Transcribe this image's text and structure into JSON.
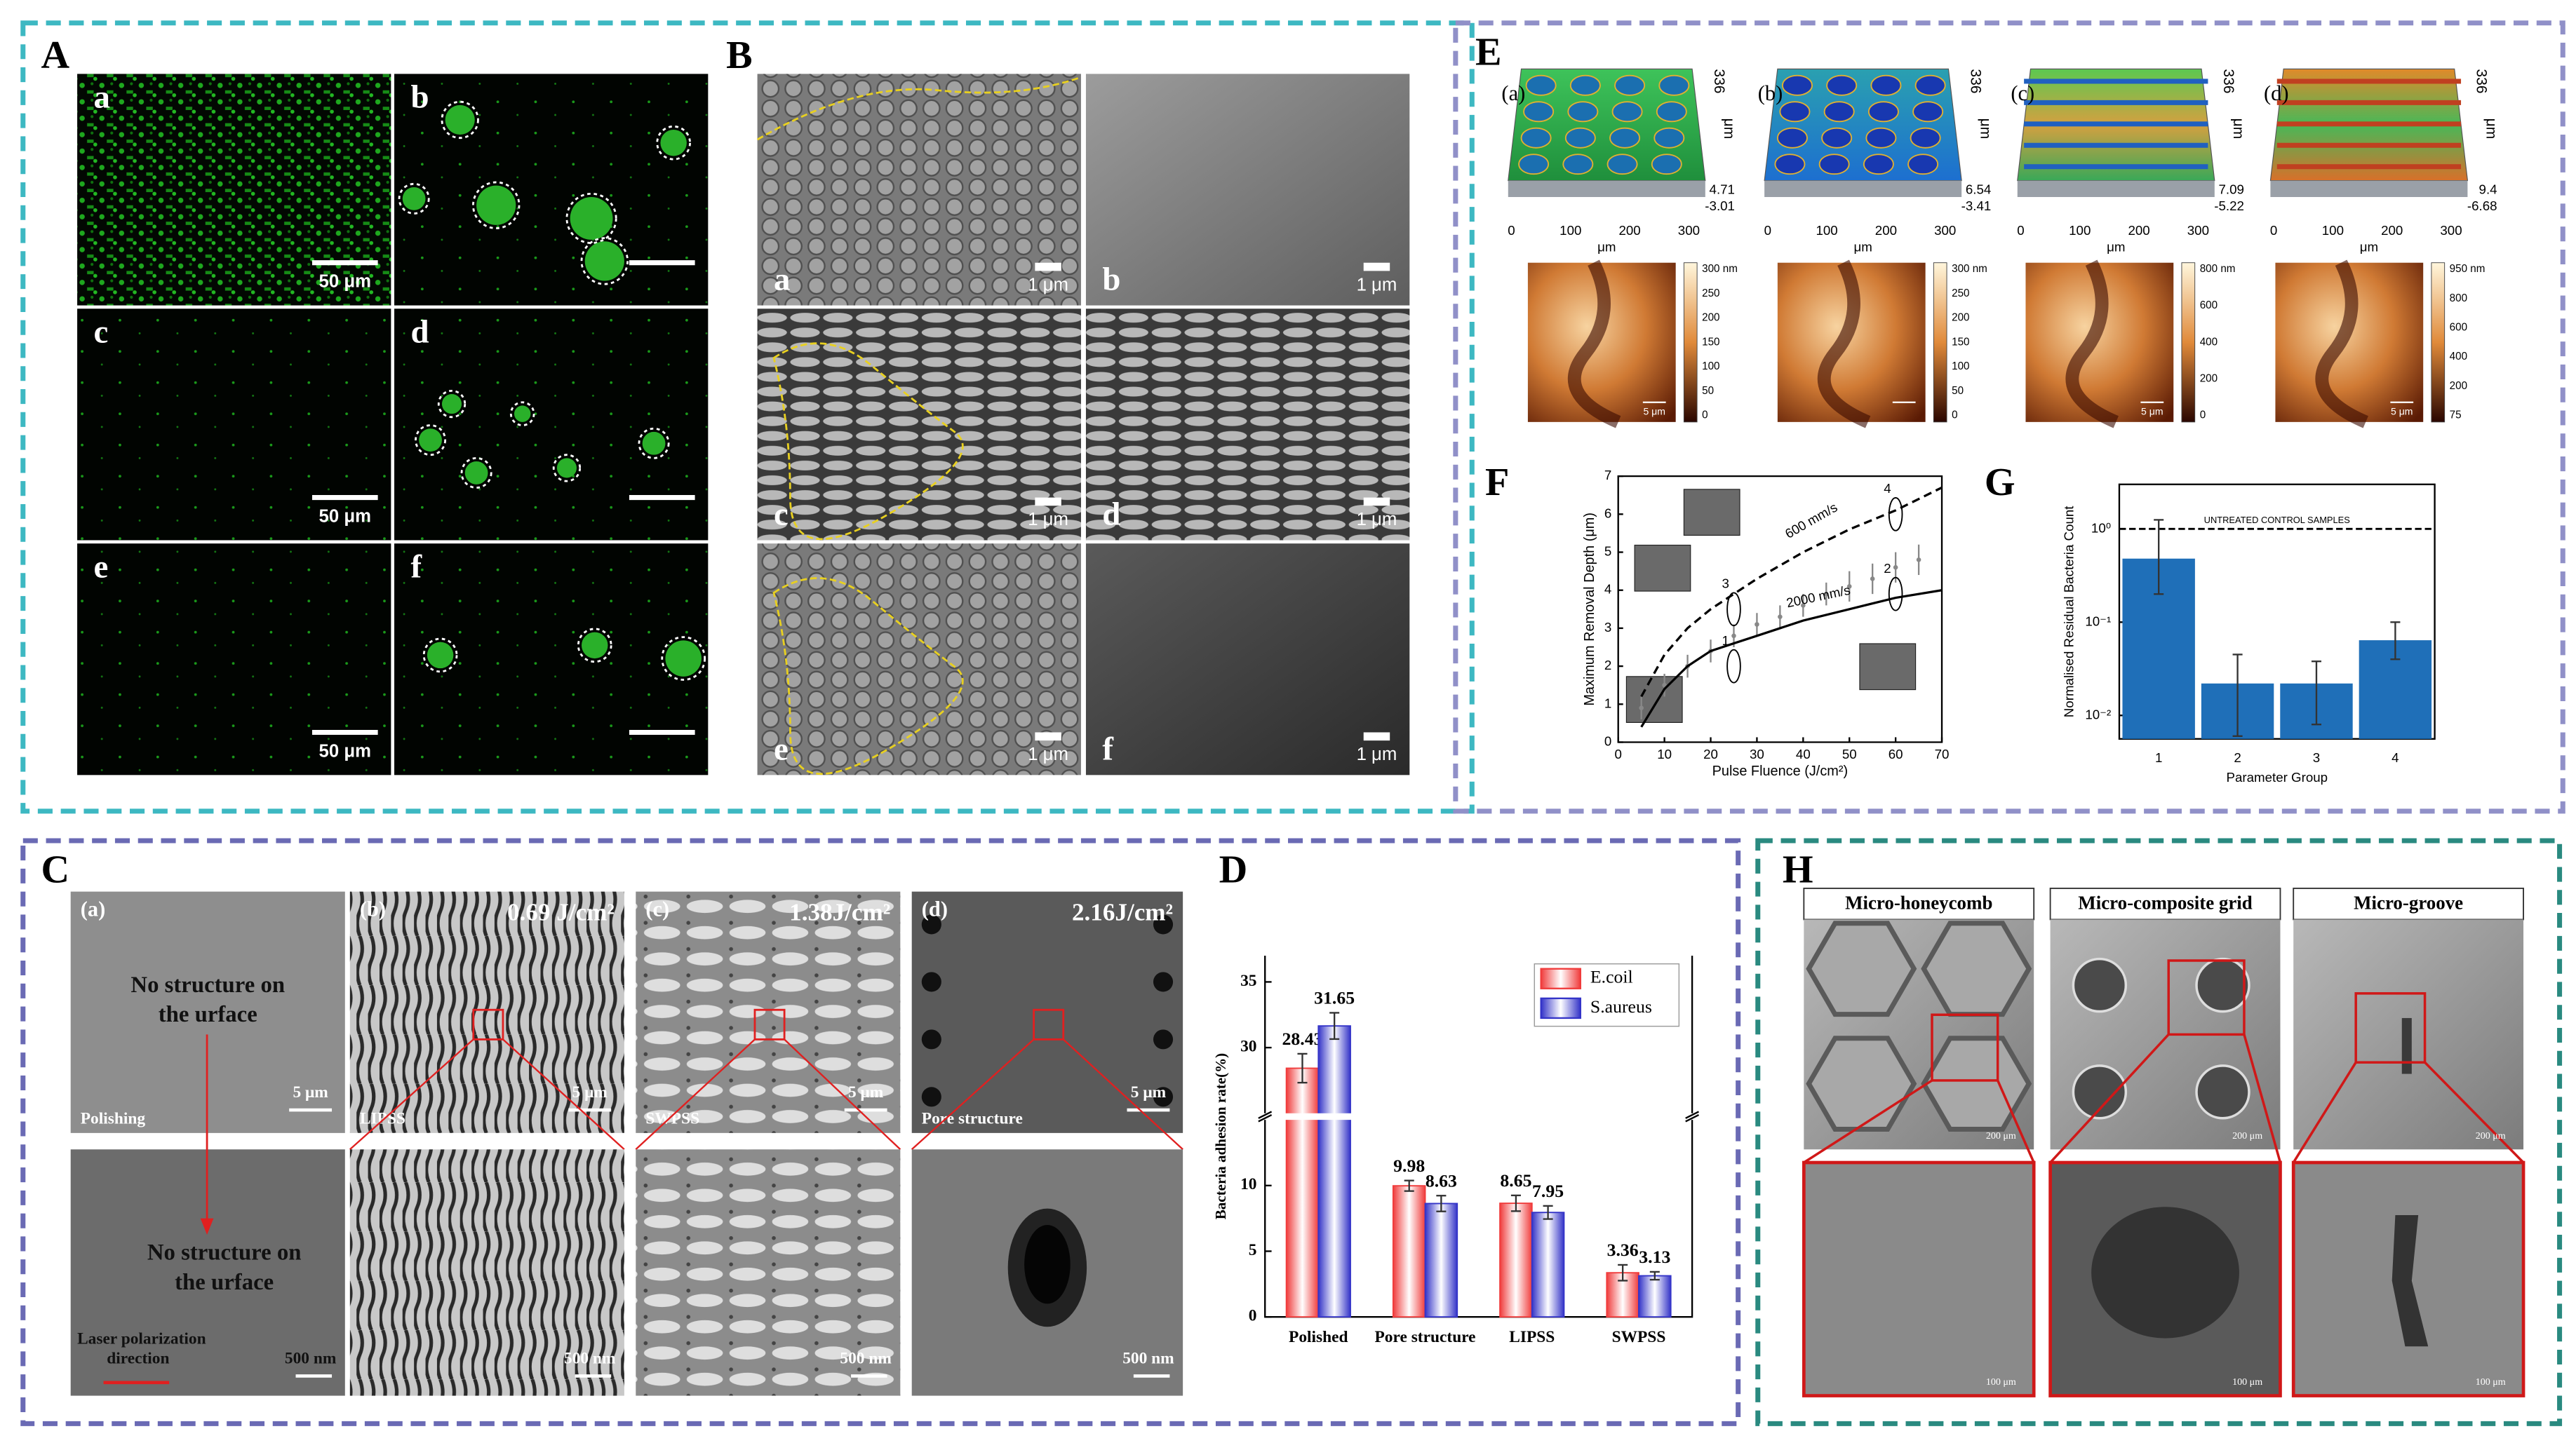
{
  "panels": {
    "A": {
      "label": "A",
      "images": [
        {
          "label": "a",
          "scale_bar": "50 μm"
        },
        {
          "label": "b"
        },
        {
          "label": "c",
          "scale_bar": "50 μm"
        },
        {
          "label": "d"
        },
        {
          "label": "e",
          "scale_bar": "50 μm"
        },
        {
          "label": "f"
        }
      ]
    },
    "B": {
      "label": "B",
      "images": [
        {
          "label": "a",
          "scale_bar": "1 μm"
        },
        {
          "label": "b",
          "scale_bar": "1 μm"
        },
        {
          "label": "c",
          "scale_bar": "1 μm"
        },
        {
          "label": "d",
          "scale_bar": "1 μm"
        },
        {
          "label": "e",
          "scale_bar": "1 μm"
        },
        {
          "label": "f",
          "scale_bar": "1 μm"
        }
      ]
    },
    "C": {
      "label": "C",
      "top": [
        {
          "label": "(a)",
          "note": [
            "No structure on",
            "the urface"
          ],
          "caption": "Polishing",
          "scale_bar": "5 μm"
        },
        {
          "label": "(b)",
          "fluence": "0.69 J/cm²",
          "caption": "LIPSS",
          "scale_bar": "5 μm"
        },
        {
          "label": "(c)",
          "fluence": "1.38J/cm²",
          "caption": "SWPSS",
          "scale_bar": "5 μm"
        },
        {
          "label": "(d)",
          "fluence": "2.16J/cm²",
          "caption": "Pore structure",
          "scale_bar": "5 μm"
        }
      ],
      "bottom": [
        {
          "note": [
            "No structure on",
            "the urface"
          ],
          "polarization": [
            "Laser polarization",
            "direction"
          ],
          "scale_bar": "500 nm"
        },
        {
          "scale_bar": "500 nm"
        },
        {
          "scale_bar": "500 nm"
        },
        {
          "scale_bar": "500 nm"
        }
      ]
    },
    "D": {
      "label": "D"
    },
    "E": {
      "label": "E",
      "surfaces": [
        {
          "label": "(a)",
          "z_max": "336",
          "z_unit": "μm",
          "z_values": [
            "4.71",
            "-3.01"
          ],
          "xticks": [
            "0",
            "100",
            "200",
            "300"
          ],
          "x_unit": "μm"
        },
        {
          "label": "(b)",
          "z_max": "336",
          "z_unit": "μm",
          "z_values": [
            "6.54",
            "-3.41"
          ],
          "xticks": [
            "0",
            "100",
            "200",
            "300"
          ],
          "x_unit": "μm"
        },
        {
          "label": "(c)",
          "z_max": "336",
          "z_unit": "μm",
          "z_values": [
            "7.09",
            "-5.22"
          ],
          "xticks": [
            "0",
            "100",
            "200",
            "300"
          ],
          "x_unit": "μm"
        },
        {
          "label": "(d)",
          "z_max": "336",
          "z_unit": "μm",
          "z_values": [
            "9.4",
            "-6.68"
          ],
          "xticks": [
            "0",
            "100",
            "200",
            "300"
          ],
          "x_unit": "μm"
        }
      ],
      "maps": [
        {
          "colorbar": [
            "300 nm",
            "250",
            "200",
            "150",
            "100",
            "50",
            "0"
          ],
          "scale_bar": "5 μm"
        },
        {
          "colorbar": [
            "300 nm",
            "250",
            "200",
            "150",
            "100",
            "50",
            "0"
          ]
        },
        {
          "colorbar": [
            "800 nm",
            "600",
            "400",
            "200",
            "0"
          ],
          "scale_bar": "5 μm"
        },
        {
          "colorbar": [
            "950 nm",
            "800",
            "600",
            "400",
            "200",
            "75"
          ],
          "scale_bar": "5 μm"
        }
      ]
    },
    "F": {
      "label": "F"
    },
    "G": {
      "label": "G"
    },
    "H": {
      "label": "H",
      "columns": [
        {
          "title": "Micro-honeycomb",
          "scale_bar": "200 μm",
          "zoom_scale_bar": "100 μm"
        },
        {
          "title": "Micro-composite grid",
          "scale_bar": "200 μm",
          "zoom_scale_bar": "100 μm"
        },
        {
          "title": "Micro-groove",
          "scale_bar": "200 μm",
          "zoom_scale_bar": "100 μm"
        }
      ]
    }
  },
  "chart_data": [
    {
      "type": "bar",
      "ylabel": "Bacteria adhesion rate(%)",
      "categories": [
        "Polished",
        "Pore structure",
        "LIPSS",
        "SWPSS"
      ],
      "series": [
        {
          "name": "E.coil",
          "color": "#f03c3c",
          "values": [
            28.43,
            9.98,
            8.65,
            3.36
          ],
          "errors": [
            1.1,
            0.4,
            0.6,
            0.6
          ]
        },
        {
          "name": "S.aureus",
          "color": "#3434c8",
          "values": [
            31.65,
            8.63,
            7.95,
            3.13
          ],
          "errors": [
            1.0,
            0.6,
            0.5,
            0.3
          ]
        }
      ],
      "ylim": [
        0,
        37
      ],
      "ybreak": [
        15,
        25
      ],
      "yticks": [
        0,
        5,
        10,
        30,
        35
      ],
      "legend": "upper right"
    },
    {
      "type": "line",
      "xlabel": "Pulse Fluence (J/cm²)",
      "ylabel": "Maximum Removal Depth (μm)",
      "xlim": [
        0,
        70
      ],
      "ylim": [
        0,
        7
      ],
      "xticks": [
        0,
        10,
        20,
        30,
        40,
        50,
        60,
        70
      ],
      "yticks": [
        0,
        1,
        2,
        3,
        4,
        5,
        6,
        7
      ],
      "x": [
        5,
        10,
        15,
        20,
        25,
        30,
        40,
        50,
        60,
        70
      ],
      "series": [
        {
          "name": "600 mm/s",
          "color": "#000000",
          "dash": true,
          "values": [
            1.2,
            2.3,
            3.0,
            3.5,
            3.9,
            4.3,
            5.0,
            5.6,
            6.1,
            6.7
          ]
        },
        {
          "name": "2000 mm/s",
          "color": "#000000",
          "dash": false,
          "values": [
            0.4,
            1.4,
            2.0,
            2.4,
            2.6,
            2.8,
            3.2,
            3.5,
            3.8,
            4.0
          ]
        }
      ],
      "points": {
        "color": "#888888",
        "x": [
          5,
          10,
          15,
          20,
          25,
          30,
          35,
          40,
          45,
          50,
          55,
          60,
          65
        ],
        "values": [
          0.9,
          1.5,
          2.0,
          2.4,
          2.8,
          3.1,
          3.3,
          3.6,
          3.9,
          4.1,
          4.3,
          4.6,
          4.8
        ],
        "errors": [
          0.3,
          0.3,
          0.3,
          0.3,
          0.3,
          0.3,
          0.3,
          0.3,
          0.3,
          0.4,
          0.4,
          0.4,
          0.4
        ]
      },
      "annotations": [
        {
          "text": "1",
          "x": 25,
          "y": 2.0
        },
        {
          "text": "2",
          "x": 60,
          "y": 3.9
        },
        {
          "text": "3",
          "x": 25,
          "y": 3.5
        },
        {
          "text": "4",
          "x": 60,
          "y": 6.0
        }
      ]
    },
    {
      "type": "bar",
      "log_y": true,
      "xlabel": "Parameter Group",
      "ylabel": "Normalised Residual Bacteria Count",
      "categories": [
        "1",
        "2",
        "3",
        "4"
      ],
      "values": [
        0.48,
        0.022,
        0.022,
        0.064
      ],
      "error_bounds": [
        [
          0.2,
          1.25
        ],
        [
          0.006,
          0.045
        ],
        [
          0.008,
          0.038
        ],
        [
          0.04,
          0.1
        ]
      ],
      "color": "#1f6fb8",
      "ylim": [
        0.0056,
        3
      ],
      "yticks": [
        {
          "value": 0.01,
          "label": "10⁻²"
        },
        {
          "value": 0.1,
          "label": "10⁻¹"
        },
        {
          "value": 1,
          "label": "10⁰"
        }
      ],
      "reference": {
        "value": 1,
        "label": "UNTREATED CONTROL SAMPLES"
      }
    }
  ]
}
